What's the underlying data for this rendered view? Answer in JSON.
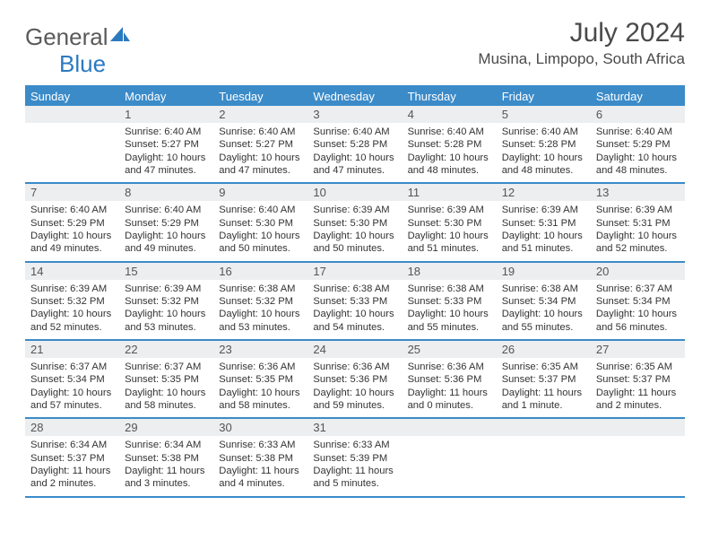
{
  "brand": {
    "part1": "General",
    "part2": "Blue"
  },
  "title": "July 2024",
  "location": "Musina, Limpopo, South Africa",
  "day_names": [
    "Sunday",
    "Monday",
    "Tuesday",
    "Wednesday",
    "Thursday",
    "Friday",
    "Saturday"
  ],
  "colors": {
    "header_bar": "#3b8bc9",
    "daynum_bg": "#eceeef",
    "text": "#333333",
    "title_text": "#4a4a4a",
    "logo_gray": "#5a5a5a",
    "logo_blue": "#2b7ac0",
    "background": "#ffffff"
  },
  "first_weekday_offset": 1,
  "days": [
    {
      "n": 1,
      "sr": "6:40 AM",
      "ss": "5:27 PM",
      "dl": "10 hours and 47 minutes."
    },
    {
      "n": 2,
      "sr": "6:40 AM",
      "ss": "5:27 PM",
      "dl": "10 hours and 47 minutes."
    },
    {
      "n": 3,
      "sr": "6:40 AM",
      "ss": "5:28 PM",
      "dl": "10 hours and 47 minutes."
    },
    {
      "n": 4,
      "sr": "6:40 AM",
      "ss": "5:28 PM",
      "dl": "10 hours and 48 minutes."
    },
    {
      "n": 5,
      "sr": "6:40 AM",
      "ss": "5:28 PM",
      "dl": "10 hours and 48 minutes."
    },
    {
      "n": 6,
      "sr": "6:40 AM",
      "ss": "5:29 PM",
      "dl": "10 hours and 48 minutes."
    },
    {
      "n": 7,
      "sr": "6:40 AM",
      "ss": "5:29 PM",
      "dl": "10 hours and 49 minutes."
    },
    {
      "n": 8,
      "sr": "6:40 AM",
      "ss": "5:29 PM",
      "dl": "10 hours and 49 minutes."
    },
    {
      "n": 9,
      "sr": "6:40 AM",
      "ss": "5:30 PM",
      "dl": "10 hours and 50 minutes."
    },
    {
      "n": 10,
      "sr": "6:39 AM",
      "ss": "5:30 PM",
      "dl": "10 hours and 50 minutes."
    },
    {
      "n": 11,
      "sr": "6:39 AM",
      "ss": "5:30 PM",
      "dl": "10 hours and 51 minutes."
    },
    {
      "n": 12,
      "sr": "6:39 AM",
      "ss": "5:31 PM",
      "dl": "10 hours and 51 minutes."
    },
    {
      "n": 13,
      "sr": "6:39 AM",
      "ss": "5:31 PM",
      "dl": "10 hours and 52 minutes."
    },
    {
      "n": 14,
      "sr": "6:39 AM",
      "ss": "5:32 PM",
      "dl": "10 hours and 52 minutes."
    },
    {
      "n": 15,
      "sr": "6:39 AM",
      "ss": "5:32 PM",
      "dl": "10 hours and 53 minutes."
    },
    {
      "n": 16,
      "sr": "6:38 AM",
      "ss": "5:32 PM",
      "dl": "10 hours and 53 minutes."
    },
    {
      "n": 17,
      "sr": "6:38 AM",
      "ss": "5:33 PM",
      "dl": "10 hours and 54 minutes."
    },
    {
      "n": 18,
      "sr": "6:38 AM",
      "ss": "5:33 PM",
      "dl": "10 hours and 55 minutes."
    },
    {
      "n": 19,
      "sr": "6:38 AM",
      "ss": "5:34 PM",
      "dl": "10 hours and 55 minutes."
    },
    {
      "n": 20,
      "sr": "6:37 AM",
      "ss": "5:34 PM",
      "dl": "10 hours and 56 minutes."
    },
    {
      "n": 21,
      "sr": "6:37 AM",
      "ss": "5:34 PM",
      "dl": "10 hours and 57 minutes."
    },
    {
      "n": 22,
      "sr": "6:37 AM",
      "ss": "5:35 PM",
      "dl": "10 hours and 58 minutes."
    },
    {
      "n": 23,
      "sr": "6:36 AM",
      "ss": "5:35 PM",
      "dl": "10 hours and 58 minutes."
    },
    {
      "n": 24,
      "sr": "6:36 AM",
      "ss": "5:36 PM",
      "dl": "10 hours and 59 minutes."
    },
    {
      "n": 25,
      "sr": "6:36 AM",
      "ss": "5:36 PM",
      "dl": "11 hours and 0 minutes."
    },
    {
      "n": 26,
      "sr": "6:35 AM",
      "ss": "5:37 PM",
      "dl": "11 hours and 1 minute."
    },
    {
      "n": 27,
      "sr": "6:35 AM",
      "ss": "5:37 PM",
      "dl": "11 hours and 2 minutes."
    },
    {
      "n": 28,
      "sr": "6:34 AM",
      "ss": "5:37 PM",
      "dl": "11 hours and 2 minutes."
    },
    {
      "n": 29,
      "sr": "6:34 AM",
      "ss": "5:38 PM",
      "dl": "11 hours and 3 minutes."
    },
    {
      "n": 30,
      "sr": "6:33 AM",
      "ss": "5:38 PM",
      "dl": "11 hours and 4 minutes."
    },
    {
      "n": 31,
      "sr": "6:33 AM",
      "ss": "5:39 PM",
      "dl": "11 hours and 5 minutes."
    }
  ],
  "labels": {
    "sunrise": "Sunrise:",
    "sunset": "Sunset:",
    "daylight": "Daylight:"
  }
}
